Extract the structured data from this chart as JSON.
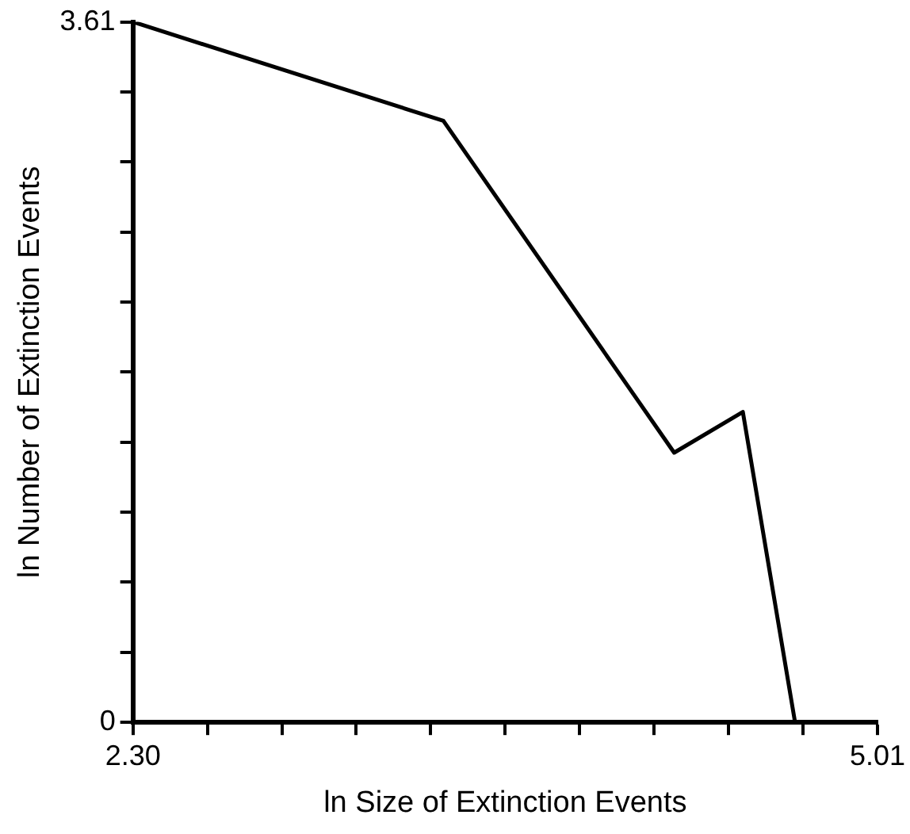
{
  "chart_data": {
    "type": "line",
    "xlabel": "ln Size of Extinction Events",
    "ylabel": "ln Number of Extinction Events",
    "x": [
      2.3,
      3.43,
      4.27,
      4.52,
      4.71,
      5.01
    ],
    "values": [
      3.61,
      3.1,
      1.39,
      1.6,
      0,
      0
    ],
    "color": "#000000",
    "marker": "none",
    "legend": false,
    "grid": false,
    "xlim": [
      2.3,
      5.01
    ],
    "xticks": [
      {
        "value": 2.3,
        "label": "2.30"
      },
      {
        "value": 2.571,
        "label": null
      },
      {
        "value": 2.842,
        "label": null
      },
      {
        "value": 3.113,
        "label": null
      },
      {
        "value": 3.384,
        "label": null
      },
      {
        "value": 3.655,
        "label": null
      },
      {
        "value": 3.926,
        "label": null
      },
      {
        "value": 4.197,
        "label": null
      },
      {
        "value": 4.468,
        "label": null
      },
      {
        "value": 4.739,
        "label": null
      },
      {
        "value": 5.01,
        "label": "5.01"
      }
    ],
    "ylim": [
      0,
      3.61
    ],
    "yticks": [
      {
        "value": 0,
        "label": "0"
      },
      {
        "value": 0.361,
        "label": null
      },
      {
        "value": 0.722,
        "label": null
      },
      {
        "value": 1.083,
        "label": null
      },
      {
        "value": 1.444,
        "label": null
      },
      {
        "value": 1.805,
        "label": null
      },
      {
        "value": 2.166,
        "label": null
      },
      {
        "value": 2.527,
        "label": null
      },
      {
        "value": 2.888,
        "label": null
      },
      {
        "value": 3.249,
        "label": null
      },
      {
        "value": 3.61,
        "label": "3.61"
      }
    ]
  }
}
